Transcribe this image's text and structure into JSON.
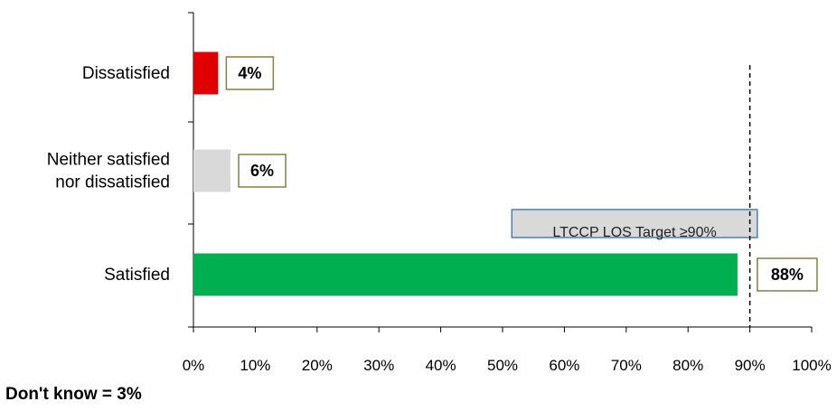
{
  "chart_data": {
    "type": "bar",
    "orientation": "horizontal",
    "categories": [
      [
        "Dissatisfied"
      ],
      [
        "Neither satisfied",
        "nor dissatisfied"
      ],
      [
        "Satisfied"
      ]
    ],
    "values": [
      4,
      6,
      88
    ],
    "data_labels": [
      "4%",
      "6%",
      "88%"
    ],
    "bar_colors": [
      "#e00000",
      "#d9d9d9",
      "#00b050"
    ],
    "xlim": [
      0,
      100
    ],
    "x_ticks": [
      "0%",
      "10%",
      "20%",
      "30%",
      "40%",
      "50%",
      "60%",
      "70%",
      "80%",
      "90%",
      "100%"
    ],
    "grid": false,
    "legend": "none",
    "reference_line": {
      "value": 90,
      "style": "dashed",
      "color": "#000000"
    },
    "annotation": "LTCCP LOS Target ≥90%",
    "title": "",
    "xlabel": "",
    "ylabel": ""
  },
  "footnote": "Don't know = 3%"
}
